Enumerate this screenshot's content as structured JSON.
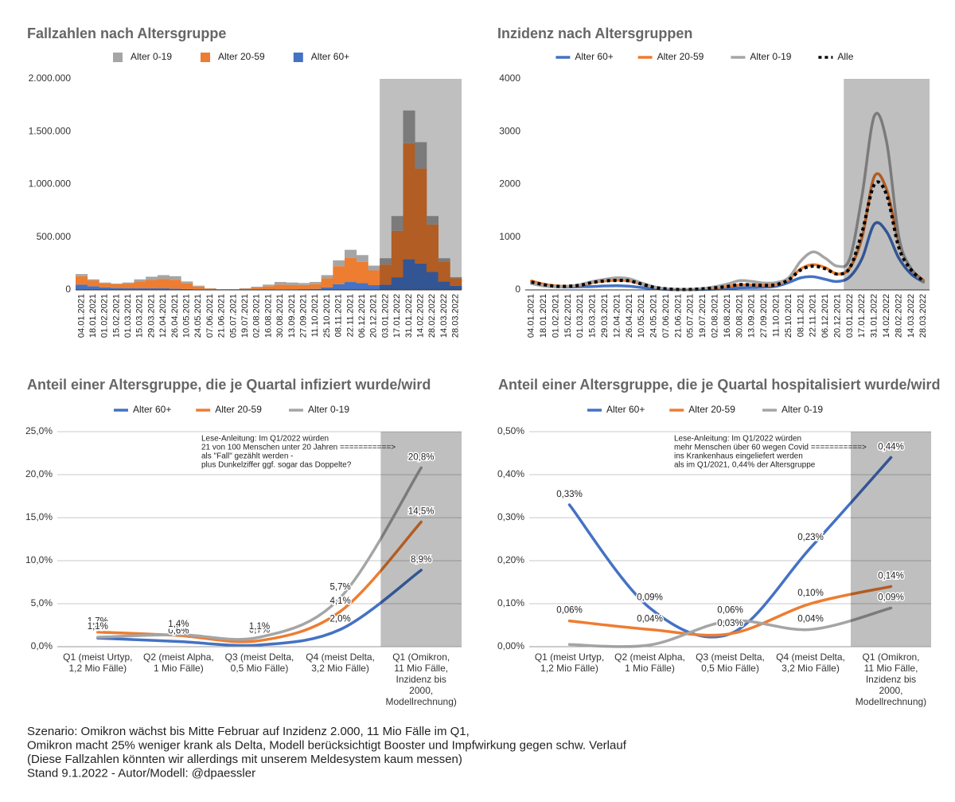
{
  "chart_data": [
    {
      "type": "area",
      "stacked": true,
      "title": "Fallzahlen nach Altersgruppe",
      "grid": false,
      "categories": [
        "04.01.2021",
        "18.01.2021",
        "01.02.2021",
        "15.02.2021",
        "01.03.2021",
        "15.03.2021",
        "29.03.2021",
        "12.04.2021",
        "26.04.2021",
        "10.05.2021",
        "24.05.2021",
        "07.06.2021",
        "21.06.2021",
        "05.07.2021",
        "19.07.2021",
        "02.08.2021",
        "16.08.2021",
        "30.08.2021",
        "13.09.2021",
        "27.09.2021",
        "11.10.2021",
        "25.10.2021",
        "08.11.2021",
        "22.11.2021",
        "06.12.2021",
        "20.12.2021",
        "03.01.2022",
        "17.01.2022",
        "31.01.2022",
        "14.02.2022",
        "28.02.2022",
        "14.03.2022",
        "28.03.2022"
      ],
      "series": [
        {
          "name": "Alter 0-19",
          "color": "#a5a5a5",
          "values": [
            20000,
            10000,
            7000,
            7000,
            10000,
            20000,
            30000,
            35000,
            33000,
            17000,
            8000,
            3000,
            1000,
            2000,
            4000,
            8000,
            15000,
            25000,
            22000,
            18000,
            20000,
            30000,
            55000,
            75000,
            65000,
            45000,
            60000,
            140000,
            310000,
            250000,
            80000,
            30000,
            10000
          ]
        },
        {
          "name": "Alter 20-59",
          "color": "#ed7d31",
          "values": [
            80000,
            55000,
            38000,
            35000,
            45000,
            65000,
            80000,
            90000,
            85000,
            55000,
            28000,
            10000,
            5000,
            5000,
            10000,
            20000,
            32000,
            45000,
            42000,
            40000,
            45000,
            85000,
            170000,
            230000,
            200000,
            140000,
            190000,
            440000,
            1100000,
            900000,
            450000,
            190000,
            70000
          ]
        },
        {
          "name": "Alter 60+",
          "color": "#4472c4",
          "values": [
            50000,
            35000,
            25000,
            18000,
            15000,
            15000,
            15000,
            15000,
            12000,
            8000,
            4000,
            2000,
            1000,
            1000,
            1000,
            2000,
            3000,
            5000,
            6000,
            7000,
            10000,
            25000,
            55000,
            75000,
            65000,
            45000,
            50000,
            120000,
            290000,
            250000,
            170000,
            80000,
            40000
          ]
        }
      ],
      "ylim": [
        0,
        2000000
      ],
      "yticks": [
        0,
        {
          "value": 500000,
          "label": "500.000"
        },
        {
          "value": 1000000,
          "label": "1.000.000"
        },
        {
          "value": 1500000,
          "label": "1.500.000"
        },
        {
          "value": 2000000,
          "label": "2.000.000"
        }
      ]
    },
    {
      "type": "line",
      "smooth": true,
      "title": "Inzidenz nach Altersgruppen",
      "grid": false,
      "categories": [
        "04.01.2021",
        "18.01.2021",
        "01.02.2021",
        "15.02.2021",
        "01.03.2021",
        "15.03.2021",
        "29.03.2021",
        "12.04.2021",
        "26.04.2021",
        "10.05.2021",
        "24.05.2021",
        "07.06.2021",
        "21.06.2021",
        "05.07.2021",
        "19.07.2021",
        "02.08.2021",
        "16.08.2021",
        "30.08.2021",
        "13.09.2021",
        "27.09.2021",
        "11.10.2021",
        "25.10.2021",
        "08.11.2021",
        "22.11.2021",
        "06.12.2021",
        "20.12.2021",
        "03.01.2022",
        "17.01.2022",
        "31.01.2022",
        "14.02.2022",
        "28.02.2022",
        "14.03.2022",
        "28.03.2022"
      ],
      "series": [
        {
          "name": "Alter 60+",
          "color": "#4472c4",
          "values": [
            130,
            80,
            60,
            55,
            60,
            65,
            75,
            80,
            70,
            45,
            25,
            10,
            5,
            5,
            8,
            15,
            25,
            40,
            45,
            50,
            70,
            140,
            230,
            250,
            200,
            160,
            250,
            600,
            1250,
            1100,
            600,
            300,
            150
          ]
        },
        {
          "name": "Alter 20-59",
          "color": "#ed7d31",
          "values": [
            170,
            110,
            75,
            70,
            90,
            140,
            170,
            185,
            170,
            110,
            55,
            20,
            10,
            10,
            20,
            40,
            65,
            95,
            95,
            90,
            100,
            200,
            400,
            480,
            420,
            300,
            420,
            1000,
            2150,
            1900,
            900,
            400,
            180
          ]
        },
        {
          "name": "Alter 0-19",
          "color": "#a5a5a5",
          "values": [
            120,
            75,
            60,
            65,
            100,
            160,
            200,
            230,
            210,
            130,
            60,
            20,
            8,
            10,
            25,
            60,
            110,
            175,
            160,
            130,
            140,
            230,
            550,
            720,
            600,
            450,
            600,
            1800,
            3300,
            2800,
            1000,
            400,
            150
          ]
        },
        {
          "name": "Alle",
          "color": "#000000",
          "style": "dotted",
          "values": [
            150,
            100,
            70,
            70,
            90,
            140,
            170,
            180,
            170,
            110,
            50,
            20,
            8,
            10,
            20,
            40,
            65,
            100,
            95,
            85,
            100,
            190,
            380,
            450,
            400,
            300,
            420,
            1100,
            2000,
            1800,
            800,
            380,
            170
          ]
        }
      ],
      "ylim": [
        0,
        4000
      ],
      "yticks": [
        0,
        1000,
        2000,
        3000,
        4000
      ]
    },
    {
      "type": "line",
      "smooth": true,
      "title": "Anteil einer Altersgruppe, die je Quartal infiziert wurde/wird",
      "grid": true,
      "categories": [
        [
          "Q1 (meist Urtyp,",
          "1,2 Mio Fälle)"
        ],
        [
          "Q2 (meist Alpha,",
          "1 Mio Fälle)"
        ],
        [
          "Q3 (meist Delta,",
          "0,5 Mio Fälle)"
        ],
        [
          "Q4 (meist Delta,",
          "3,2 Mio Fälle)"
        ],
        [
          "Q1 (Omikron,",
          "11 Mio Fälle,",
          "Inzidenz bis",
          "2000,",
          "Modellrechnung)"
        ]
      ],
      "series": [
        {
          "name": "Alter 60+",
          "color": "#4472c4",
          "values": [
            1.0,
            0.6,
            0.2,
            2.0,
            8.9
          ],
          "value_labels": [
            "1,0%",
            "0,6%",
            null,
            "2,0%",
            "8,9%"
          ]
        },
        {
          "name": "Alter 20-59",
          "color": "#ed7d31",
          "values": [
            1.7,
            1.3,
            0.7,
            4.1,
            14.5
          ],
          "value_labels": [
            "1,7%",
            "1,3%",
            "0,7%",
            "4,1%",
            "14,5%"
          ]
        },
        {
          "name": "Alter 0-19",
          "color": "#a5a5a5",
          "values": [
            1.1,
            1.4,
            1.1,
            5.7,
            20.8
          ],
          "value_labels": [
            "1,1%",
            "1,4%",
            "1,1%",
            "5,7%",
            "20,8%"
          ]
        }
      ],
      "ylim": [
        0,
        25
      ],
      "yticks": [
        {
          "value": 0,
          "label": "0,0%"
        },
        {
          "value": 5,
          "label": "5,0%"
        },
        {
          "value": 10,
          "label": "10,0%"
        },
        {
          "value": 15,
          "label": "15,0%"
        },
        {
          "value": 20,
          "label": "20,0%"
        },
        {
          "value": 25,
          "label": "25,0%"
        }
      ],
      "annotation_color": "#e010e0",
      "annotation": [
        "Lese-Anleitung: Im Q1/2022 würden",
        "21 von 100 Menschen unter 20 Jahren   ===========>",
        "als \"Fall\" gezählt werden -",
        "plus Dunkelziffer ggf. sogar das Doppelte?"
      ]
    },
    {
      "type": "line",
      "smooth": true,
      "title": "Anteil einer Altersgruppe, die je Quartal hospitalisiert wurde/wird",
      "grid": true,
      "categories": [
        [
          "Q1 (meist Urtyp,",
          "1,2 Mio Fälle)"
        ],
        [
          "Q2 (meist Alpha,",
          "1 Mio Fälle)"
        ],
        [
          "Q3 (meist Delta,",
          "0,5 Mio Fälle)"
        ],
        [
          "Q4 (meist Delta,",
          "3,2 Mio Fälle)"
        ],
        [
          "Q1 (Omikron,",
          "11 Mio Fälle,",
          "Inzidenz bis",
          "2000,",
          "Modellrechnung)"
        ]
      ],
      "series": [
        {
          "name": "Alter 60+",
          "color": "#4472c4",
          "values": [
            0.33,
            0.09,
            0.03,
            0.23,
            0.44
          ],
          "value_labels": [
            "0,33%",
            "0,09%",
            null,
            "0,23%",
            "0,44%"
          ]
        },
        {
          "name": "Alter 20-59",
          "color": "#ed7d31",
          "values": [
            0.06,
            0.04,
            0.03,
            0.1,
            0.14
          ],
          "value_labels": [
            "0,06%",
            "0,04%",
            "0,03%",
            "0,10%",
            "0,14%"
          ]
        },
        {
          "name": "Alter 0-19",
          "color": "#a5a5a5",
          "values": [
            0.005,
            0.004,
            0.06,
            0.04,
            0.09
          ],
          "value_labels": [
            null,
            null,
            "0,06%",
            "0,04%",
            "0,09%"
          ]
        }
      ],
      "ylim": [
        0,
        0.5
      ],
      "yticks": [
        {
          "value": 0,
          "label": "0,00%"
        },
        {
          "value": 0.1,
          "label": "0,10%"
        },
        {
          "value": 0.2,
          "label": "0,20%"
        },
        {
          "value": 0.3,
          "label": "0,30%"
        },
        {
          "value": 0.4,
          "label": "0,40%"
        },
        {
          "value": 0.5,
          "label": "0,50%"
        }
      ],
      "annotation_color": "#e010e0",
      "annotation": [
        "Lese-Anleitung: Im Q1/2022 würden",
        "mehr Menschen über 60 wegen Covid   ===========>",
        "ins Krankenhaus eingeliefert werden",
        "als im Q1/2021, 0,44% der Altersgruppe"
      ]
    }
  ],
  "footer_color": "#d010d0",
  "footer": [
    "Szenario: Omikron wächst bis Mitte Februar auf Inzidenz 2.000, 11 Mio Fälle im Q1,",
    "Omikron macht 25% weniger krank als Delta, Modell berücksichtigt Booster und Impfwirkung gegen schw. Verlauf",
    "(Diese Fallzahlen könnten wir allerdings mit unserem Meldesystem kaum messen)",
    "Stand 9.1.2022 - Autor/Modell: @dpaessler"
  ]
}
